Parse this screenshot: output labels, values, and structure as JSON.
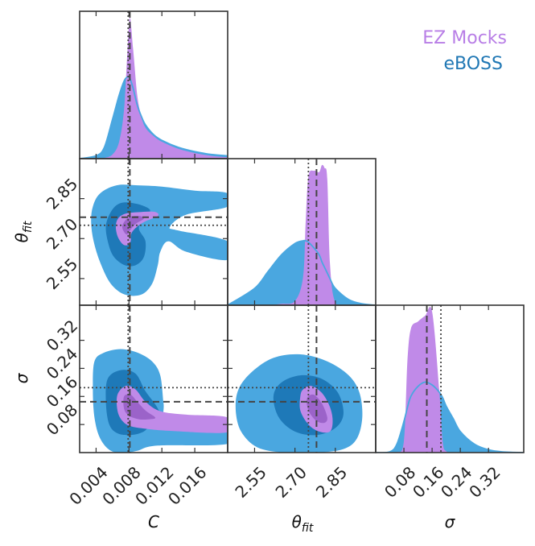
{
  "chart_data": {
    "type": "corner",
    "legend": {
      "placement": "top-right",
      "entries": [
        {
          "label": "EZ Mocks",
          "color": "#b87ee6"
        },
        {
          "label": "eBOSS",
          "color": "#1f77b4"
        }
      ]
    },
    "colors": {
      "ez_mocks_fill": "#c08ae8",
      "ez_mocks_dark": "#9b63c9",
      "eboss_fill": "#4aa7e0",
      "eboss_dark": "#1e79b8",
      "eboss_line": "#4aa7e0",
      "reference_line": "#444444",
      "frame": "#333333"
    },
    "parameters": [
      {
        "name": "C",
        "label": "C",
        "range": [
          0.002,
          0.02
        ],
        "ticks": [
          "0.004",
          "0.008",
          "0.012",
          "0.016"
        ],
        "tick_values": [
          0.004,
          0.008,
          0.012,
          0.016
        ],
        "reference_dashed": 0.0081,
        "reference_dotted": 0.0079
      },
      {
        "name": "theta_fit",
        "label": "θ_fit",
        "label_main": "θ",
        "label_sub": "fit",
        "range": [
          2.45,
          3.0
        ],
        "ticks": [
          "2.55",
          "2.70",
          "2.85"
        ],
        "tick_values": [
          2.55,
          2.7,
          2.85
        ],
        "reference_dashed": 2.78,
        "reference_dotted": 2.75
      },
      {
        "name": "sigma",
        "label": "σ",
        "range": [
          0.0,
          0.42
        ],
        "ticks": [
          "0.08",
          "0.16",
          "0.24",
          "0.32"
        ],
        "tick_values": [
          0.08,
          0.16,
          0.24,
          0.32
        ],
        "reference_dashed": 0.145,
        "reference_dotted": 0.185
      }
    ],
    "marginals": {
      "C": {
        "x": [
          0.002,
          0.004,
          0.005,
          0.006,
          0.0068,
          0.0074,
          0.0078,
          0.0081,
          0.0085,
          0.009,
          0.0095,
          0.01,
          0.011,
          0.012,
          0.014,
          0.016,
          0.018,
          0.02
        ],
        "ez_mocks": [
          0,
          0,
          0.005,
          0.03,
          0.12,
          0.35,
          0.75,
          1.0,
          0.78,
          0.45,
          0.3,
          0.22,
          0.16,
          0.12,
          0.07,
          0.04,
          0.02,
          0.01
        ],
        "eboss": [
          0,
          0.02,
          0.08,
          0.28,
          0.45,
          0.55,
          0.58,
          0.57,
          0.5,
          0.38,
          0.3,
          0.24,
          0.17,
          0.13,
          0.08,
          0.05,
          0.03,
          0.02
        ]
      },
      "theta_fit": {
        "x": [
          2.45,
          2.55,
          2.6,
          2.65,
          2.7,
          2.73,
          2.74,
          2.75,
          2.77,
          2.79,
          2.8,
          2.81,
          2.82,
          2.83,
          2.85,
          2.9,
          2.95,
          3.0
        ],
        "ez_mocks": [
          0,
          0,
          0,
          0.01,
          0.03,
          0.2,
          0.6,
          0.92,
          0.96,
          0.95,
          1.0,
          0.98,
          0.9,
          0.3,
          0.02,
          0,
          0,
          0
        ],
        "eboss": [
          0.0,
          0.12,
          0.24,
          0.36,
          0.44,
          0.46,
          0.46,
          0.45,
          0.41,
          0.36,
          0.31,
          0.27,
          0.23,
          0.19,
          0.12,
          0.04,
          0.01,
          0.0
        ]
      },
      "sigma": {
        "x": [
          0.0,
          0.04,
          0.06,
          0.08,
          0.09,
          0.1,
          0.12,
          0.14,
          0.16,
          0.18,
          0.19,
          0.2,
          0.22,
          0.24,
          0.28,
          0.32,
          0.36,
          0.42
        ],
        "ez_mocks": [
          0,
          0,
          0.003,
          0.08,
          0.65,
          0.88,
          0.93,
          0.97,
          1.0,
          0.45,
          0.08,
          0.01,
          0,
          0,
          0,
          0,
          0,
          0
        ],
        "eboss": [
          0.0,
          0.005,
          0.06,
          0.22,
          0.32,
          0.4,
          0.47,
          0.5,
          0.48,
          0.43,
          0.39,
          0.33,
          0.24,
          0.15,
          0.06,
          0.02,
          0.005,
          0.0
        ]
      }
    },
    "contours": {
      "C_theta_fit": {
        "eboss": [
          {
            "level": 0.95,
            "points": [
              [
                0.0034,
                2.76
              ],
              [
                0.0037,
                2.69
              ],
              [
                0.0045,
                2.61
              ],
              [
                0.0058,
                2.53
              ],
              [
                0.0075,
                2.49
              ],
              [
                0.0095,
                2.49
              ],
              [
                0.0108,
                2.53
              ],
              [
                0.0115,
                2.6
              ],
              [
                0.0118,
                2.65
              ],
              [
                0.0128,
                2.69
              ],
              [
                0.015,
                2.65
              ],
              [
                0.02,
                2.62
              ],
              [
                0.02,
                2.69
              ],
              [
                0.014,
                2.73
              ],
              [
                0.013,
                2.745
              ],
              [
                0.015,
                2.79
              ],
              [
                0.02,
                2.82
              ],
              [
                0.02,
                2.87
              ],
              [
                0.016,
                2.88
              ],
              [
                0.012,
                2.895
              ],
              [
                0.009,
                2.9
              ],
              [
                0.0065,
                2.9
              ],
              [
                0.0045,
                2.87
              ],
              [
                0.0036,
                2.82
              ]
            ]
          },
          {
            "level": 0.68,
            "points": [
              [
                0.0052,
                2.75
              ],
              [
                0.0055,
                2.68
              ],
              [
                0.0062,
                2.63
              ],
              [
                0.0075,
                2.6
              ],
              [
                0.0088,
                2.6
              ],
              [
                0.0098,
                2.63
              ],
              [
                0.01,
                2.69
              ],
              [
                0.0092,
                2.74
              ],
              [
                0.0102,
                2.785
              ],
              [
                0.0105,
                2.81
              ],
              [
                0.009,
                2.83
              ],
              [
                0.0072,
                2.835
              ],
              [
                0.006,
                2.81
              ]
            ]
          }
        ],
        "ez_mocks": [
          {
            "level": 0.95,
            "points": [
              [
                0.0064,
                2.75
              ],
              [
                0.0066,
                2.71
              ],
              [
                0.0072,
                2.68
              ],
              [
                0.0078,
                2.675
              ],
              [
                0.0082,
                2.69
              ],
              [
                0.0083,
                2.72
              ],
              [
                0.009,
                2.745
              ],
              [
                0.01,
                2.765
              ],
              [
                0.0115,
                2.785
              ],
              [
                0.0112,
                2.8
              ],
              [
                0.0095,
                2.8
              ],
              [
                0.0078,
                2.795
              ],
              [
                0.0068,
                2.78
              ]
            ]
          },
          {
            "level": 0.68,
            "points": [
              [
                0.0072,
                2.75
              ],
              [
                0.0074,
                2.725
              ],
              [
                0.0078,
                2.715
              ],
              [
                0.0081,
                2.73
              ],
              [
                0.0088,
                2.755
              ],
              [
                0.0098,
                2.775
              ],
              [
                0.0092,
                2.785
              ],
              [
                0.008,
                2.78
              ]
            ]
          }
        ]
      },
      "C_sigma": {
        "eboss": [
          {
            "level": 0.95,
            "points": [
              [
                0.0038,
                0.26
              ],
              [
                0.0036,
                0.18
              ],
              [
                0.0038,
                0.1
              ],
              [
                0.0045,
                0.04
              ],
              [
                0.0058,
                0.005
              ],
              [
                0.0075,
                0.0
              ],
              [
                0.009,
                0.005
              ],
              [
                0.0115,
                0.02
              ],
              [
                0.02,
                0.025
              ],
              [
                0.02,
                0.07
              ],
              [
                0.016,
                0.075
              ],
              [
                0.0125,
                0.09
              ],
              [
                0.0122,
                0.14
              ],
              [
                0.0118,
                0.22
              ],
              [
                0.0108,
                0.26
              ],
              [
                0.009,
                0.285
              ],
              [
                0.007,
                0.295
              ],
              [
                0.005,
                0.285
              ]
            ]
          },
          {
            "level": 0.68,
            "points": [
              [
                0.0054,
                0.21
              ],
              [
                0.0052,
                0.14
              ],
              [
                0.0056,
                0.08
              ],
              [
                0.0066,
                0.055
              ],
              [
                0.0082,
                0.05
              ],
              [
                0.0098,
                0.06
              ],
              [
                0.0108,
                0.085
              ],
              [
                0.0118,
                0.1
              ],
              [
                0.0114,
                0.13
              ],
              [
                0.01,
                0.175
              ],
              [
                0.0088,
                0.225
              ],
              [
                0.007,
                0.235
              ]
            ]
          }
        ],
        "ez_mocks": [
          {
            "level": 0.95,
            "points": [
              [
                0.0066,
                0.165
              ],
              [
                0.0066,
                0.12
              ],
              [
                0.0072,
                0.09
              ],
              [
                0.0082,
                0.075
              ],
              [
                0.01,
                0.068
              ],
              [
                0.013,
                0.062
              ],
              [
                0.02,
                0.058
              ],
              [
                0.02,
                0.1
              ],
              [
                0.015,
                0.108
              ],
              [
                0.0118,
                0.118
              ],
              [
                0.01,
                0.145
              ],
              [
                0.0088,
                0.18
              ],
              [
                0.0076,
                0.19
              ]
            ]
          },
          {
            "level": 0.68,
            "points": [
              [
                0.0074,
                0.16
              ],
              [
                0.0074,
                0.125
              ],
              [
                0.008,
                0.105
              ],
              [
                0.0092,
                0.095
              ],
              [
                0.0105,
                0.095
              ],
              [
                0.0112,
                0.1
              ],
              [
                0.01,
                0.12
              ],
              [
                0.009,
                0.145
              ],
              [
                0.0082,
                0.165
              ]
            ]
          }
        ]
      },
      "theta_fit_sigma": {
        "eboss": [
          {
            "level": 0.95,
            "points": [
              [
                2.48,
                0.12
              ],
              [
                2.5,
                0.06
              ],
              [
                2.56,
                0.015
              ],
              [
                2.66,
                0.0
              ],
              [
                2.78,
                0.0
              ],
              [
                2.88,
                0.01
              ],
              [
                2.93,
                0.04
              ],
              [
                2.95,
                0.1
              ],
              [
                2.94,
                0.17
              ],
              [
                2.9,
                0.22
              ],
              [
                2.82,
                0.26
              ],
              [
                2.72,
                0.28
              ],
              [
                2.62,
                0.27
              ],
              [
                2.54,
                0.23
              ],
              [
                2.49,
                0.18
              ]
            ]
          },
          {
            "level": 0.68,
            "points": [
              [
                2.62,
                0.16
              ],
              [
                2.64,
                0.1
              ],
              [
                2.7,
                0.06
              ],
              [
                2.78,
                0.05
              ],
              [
                2.85,
                0.07
              ],
              [
                2.88,
                0.11
              ],
              [
                2.86,
                0.17
              ],
              [
                2.8,
                0.21
              ],
              [
                2.72,
                0.22
              ],
              [
                2.65,
                0.2
              ]
            ]
          }
        ],
        "ez_mocks": [
          {
            "level": 0.95,
            "points": [
              [
                2.72,
                0.16
              ],
              [
                2.72,
                0.12
              ],
              [
                2.75,
                0.08
              ],
              [
                2.79,
                0.06
              ],
              [
                2.83,
                0.06
              ],
              [
                2.84,
                0.09
              ],
              [
                2.83,
                0.13
              ],
              [
                2.8,
                0.17
              ],
              [
                2.76,
                0.19
              ],
              [
                2.73,
                0.18
              ]
            ]
          },
          {
            "level": 0.68,
            "points": [
              [
                2.745,
                0.155
              ],
              [
                2.75,
                0.12
              ],
              [
                2.78,
                0.09
              ],
              [
                2.81,
                0.085
              ],
              [
                2.82,
                0.1
              ],
              [
                2.8,
                0.14
              ],
              [
                2.77,
                0.165
              ]
            ]
          }
        ]
      }
    }
  }
}
